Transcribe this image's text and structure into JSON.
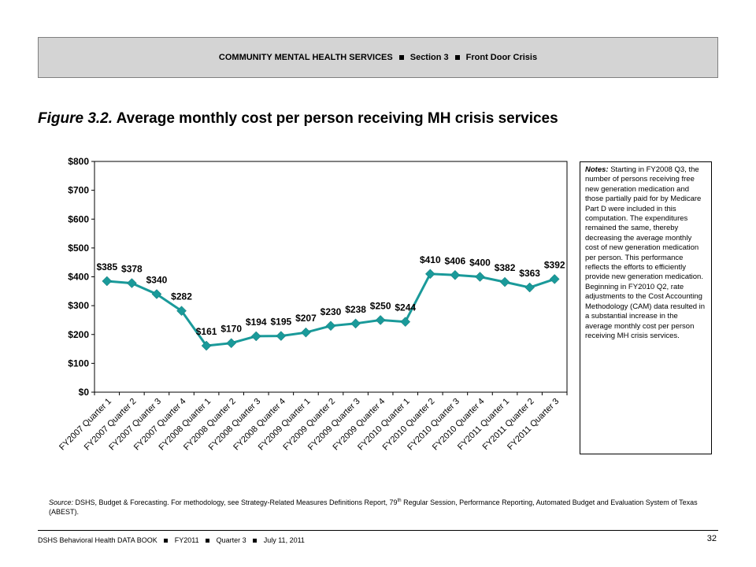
{
  "header": {
    "part1": "COMMUNITY MENTAL HEALTH SERVICES",
    "part2": "Section 3",
    "part3": "Front Door Crisis"
  },
  "figure": {
    "number": "Figure 3.2.",
    "title": "Average monthly cost per person receiving MH crisis services"
  },
  "chart_data": {
    "type": "line",
    "categories": [
      "FY2007 Quarter 1",
      "FY2007 Quarter 2",
      "FY2007 Quarter 3",
      "FY2007 Quarter 4",
      "FY2008 Quarter 1",
      "FY2008 Quarter 2",
      "FY2008 Quarter 3",
      "FY2008 Quarter 4",
      "FY2009 Quarter 1",
      "FY2009 Quarter 2",
      "FY2009 Quarter 3",
      "FY2009 Quarter 4",
      "FY2010 Quarter 1",
      "FY2010 Quarter 2",
      "FY2010 Quarter 3",
      "FY2010 Quarter 4",
      "FY2011 Quarter 1",
      "FY2011 Quarter 2",
      "FY2011 Quarter 3"
    ],
    "values": [
      385,
      378,
      340,
      282,
      161,
      170,
      194,
      195,
      207,
      230,
      238,
      250,
      244,
      410,
      406,
      400,
      382,
      363,
      392
    ],
    "data_labels": [
      "$385",
      "$378",
      "$340",
      "$282",
      "$161",
      "$170",
      "$194",
      "$195",
      "$207",
      "$230",
      "$238",
      "$250",
      "$244",
      "$410",
      "$406",
      "$400",
      "$382",
      "$363",
      "$392"
    ],
    "yticks": [
      0,
      100,
      200,
      300,
      400,
      500,
      600,
      700,
      800
    ],
    "ytick_labels": [
      "$0",
      "$100",
      "$200",
      "$300",
      "$400",
      "$500",
      "$600",
      "$700",
      "$800"
    ],
    "ylim": [
      0,
      800
    ],
    "grid": false,
    "line_color": "#1a9a9a",
    "marker": "diamond"
  },
  "notes": {
    "label": "Notes:",
    "text": " Starting in FY2008 Q3, the number of persons receiving free new generation medication and those partially paid for by Medicare Part D were included in this computation. The expenditures remained the same, thereby decreasing the average monthly cost of new generation medication per person. This performance reflects the efforts to efficiently provide new generation medication. Beginning in FY2010 Q2, rate adjustments to the Cost Accounting Methodology (CAM) data resulted in a substantial increase in the average monthly cost per person receiving MH crisis services."
  },
  "source": {
    "label": "Source:",
    "text_before": " DSHS, Budget & Forecasting. For methodology, see Strategy-Related Measures Definitions Report, 79",
    "superscript": "th",
    "text_after": " Regular Session, Performance Reporting, Automated Budget and Evaluation System of Texas (ABEST)."
  },
  "footer": {
    "part1": "DSHS Behavioral Health DATA BOOK",
    "part2": "FY2011",
    "part3": "Quarter 3",
    "part4": "July 11, 2011",
    "page_number": "32"
  }
}
